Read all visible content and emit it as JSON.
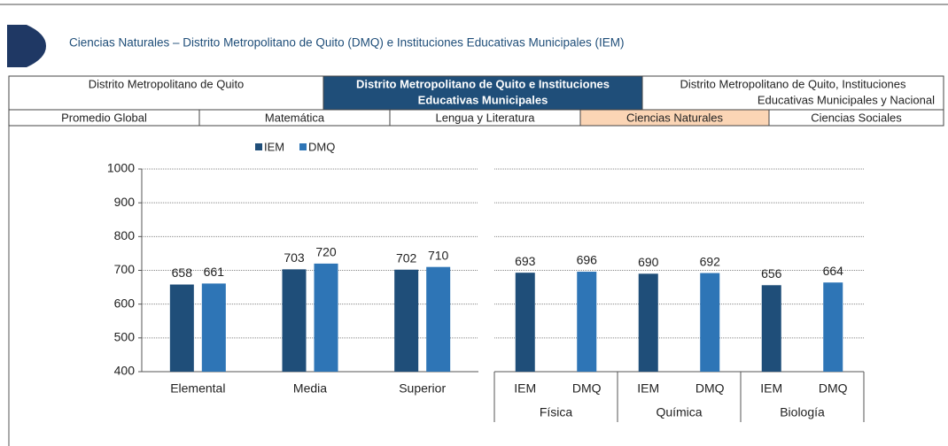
{
  "header": {
    "title": "Ciencias Naturales – Distrito Metropolitano de Quito (DMQ) e Instituciones Educativas Municipales (IEM)"
  },
  "tabs_top": [
    {
      "lines": [
        "Distrito Metropolitano de Quito"
      ],
      "selected": false
    },
    {
      "lines": [
        "Distrito Metropolitano de Quito e Instituciones",
        "Educativas Municipales"
      ],
      "selected": true
    },
    {
      "lines": [
        "Distrito Metropolitano de Quito, Instituciones",
        "Educativas Municipales y Nacional"
      ],
      "selected": false
    }
  ],
  "tabs_sub": [
    {
      "label": "Promedio Global",
      "selected": false
    },
    {
      "label": "Matemática",
      "selected": false
    },
    {
      "label": "Lengua y Literatura",
      "selected": false
    },
    {
      "label": "Ciencias Naturales",
      "selected": true
    },
    {
      "label": "Ciencias Sociales",
      "selected": false
    }
  ],
  "chart_data": [
    {
      "type": "bar",
      "categories": [
        "Elemental",
        "Media",
        "Superior"
      ],
      "series": [
        {
          "name": "IEM",
          "color": "#1f4e79",
          "values": [
            658,
            703,
            702
          ]
        },
        {
          "name": "DMQ",
          "color": "#2e75b6",
          "values": [
            661,
            720,
            710
          ]
        }
      ],
      "ylim": [
        400,
        1000
      ],
      "yticks": [
        400,
        500,
        600,
        700,
        800,
        900,
        1000
      ],
      "grid": true,
      "legend": "top"
    },
    {
      "type": "bar",
      "categories": [
        "IEM",
        "DMQ",
        "IEM",
        "DMQ",
        "IEM",
        "DMQ"
      ],
      "groups": [
        "Física",
        "Química",
        "Biología"
      ],
      "values": [
        693,
        696,
        690,
        692,
        656,
        664
      ],
      "colors": [
        "#1f4e79",
        "#2e75b6",
        "#1f4e79",
        "#2e75b6",
        "#1f4e79",
        "#2e75b6"
      ],
      "ylim": [
        400,
        1000
      ],
      "yticks": [
        400,
        500,
        600,
        700,
        800,
        900,
        1000
      ],
      "grid": true
    }
  ]
}
